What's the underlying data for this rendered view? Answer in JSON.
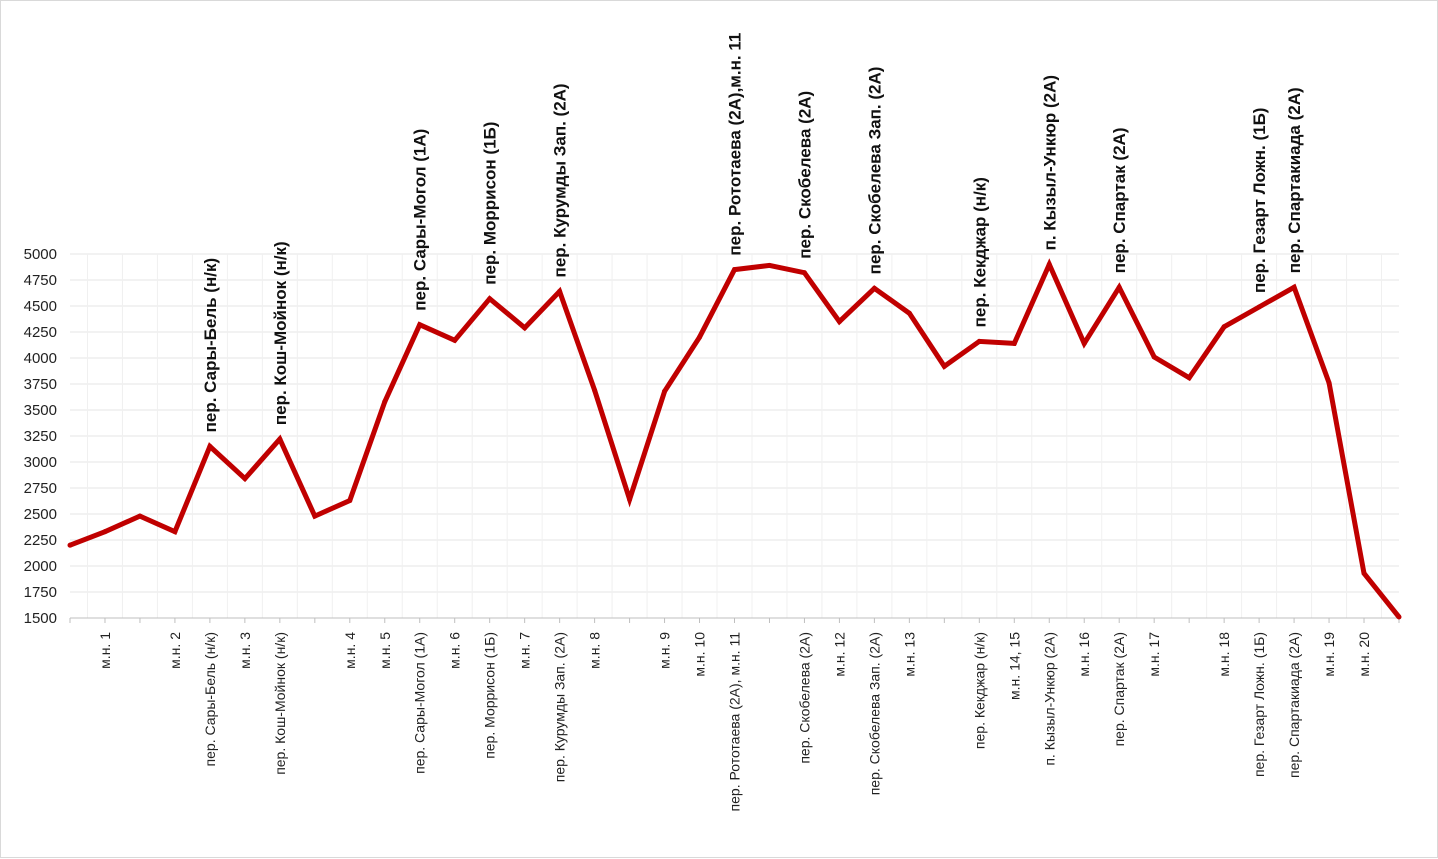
{
  "chart_data": {
    "type": "line",
    "title": "",
    "xlabel": "",
    "ylabel": "",
    "ylim": [
      1500,
      5000
    ],
    "yticks": [
      1500,
      1750,
      2000,
      2250,
      2500,
      2750,
      3000,
      3250,
      3500,
      3750,
      4000,
      4250,
      4500,
      4750,
      5000
    ],
    "grid": true,
    "legend": "none",
    "series": [
      {
        "color": "#c00000",
        "points": [
          {
            "label": "",
            "value": 2200
          },
          {
            "label": "м.н. 1",
            "value": 2330
          },
          {
            "label": "",
            "value": 2480
          },
          {
            "label": "м.н. 2",
            "value": 2330
          },
          {
            "label": "пер. Сары-Бель (н/к)",
            "value": 3150
          },
          {
            "label": "м.н. 3",
            "value": 2840
          },
          {
            "label": "пер. Кош-Мойнок (н/к)",
            "value": 3220
          },
          {
            "label": "",
            "value": 2480
          },
          {
            "label": "м.н. 4",
            "value": 2630
          },
          {
            "label": "м.н. 5",
            "value": 3580
          },
          {
            "label": "пер. Сары-Могол (1А)",
            "value": 4320
          },
          {
            "label": "м.н. 6",
            "value": 4170
          },
          {
            "label": "пер. Моррисон (1Б)",
            "value": 4570
          },
          {
            "label": "м.н. 7",
            "value": 4290
          },
          {
            "label": "пер. Курумды Зап. (2А)",
            "value": 4640
          },
          {
            "label": "м.н. 8",
            "value": 3690
          },
          {
            "label": "",
            "value": 2640
          },
          {
            "label": "м.н. 9",
            "value": 3680
          },
          {
            "label": "м.н. 10",
            "value": 4200
          },
          {
            "label": "пер. Рототаева (2А), м.н. 11",
            "value": 4850
          },
          {
            "label": "",
            "value": 4890
          },
          {
            "label": "пер. Скобелева (2А)",
            "value": 4820
          },
          {
            "label": "м.н. 12",
            "value": 4350
          },
          {
            "label": "пер. Скобелева Зап. (2А)",
            "value": 4670
          },
          {
            "label": "м.н. 13",
            "value": 4430
          },
          {
            "label": "",
            "value": 3920
          },
          {
            "label": "пер. Кекджар (н/к)",
            "value": 4160
          },
          {
            "label": "м.н. 14, 15",
            "value": 4140
          },
          {
            "label": "п. Кызыл-Ункюр (2А)",
            "value": 4900
          },
          {
            "label": "м.н. 16",
            "value": 4140
          },
          {
            "label": "пер. Спартак (2А)",
            "value": 4680
          },
          {
            "label": "м.н. 17",
            "value": 4010
          },
          {
            "label": "",
            "value": 3810
          },
          {
            "label": "м.н. 18",
            "value": 4300
          },
          {
            "label": "пер. Гезарт Ложн. (1Б)",
            "value": 4490
          },
          {
            "label": "пер. Спартакиада (2А)",
            "value": 4680
          },
          {
            "label": "м.н. 19",
            "value": 3760
          },
          {
            "label": "м.н. 20",
            "value": 1930
          },
          {
            "label": "",
            "value": 1510
          }
        ]
      }
    ],
    "annotations": [
      {
        "index": 4,
        "text": "пер. Сары-Бель (н/к)"
      },
      {
        "index": 6,
        "text": "пер. Кош-Мойнок (н/к)"
      },
      {
        "index": 10,
        "text": "пер. Сары-Могол (1А)"
      },
      {
        "index": 12,
        "text": "пер. Моррисон (1Б)"
      },
      {
        "index": 14,
        "text": "пер. Курумды Зап. (2А)"
      },
      {
        "index": 19,
        "text": "пер. Рототаева (2А),м.н. 11"
      },
      {
        "index": 21,
        "text": "пер. Скобелева (2А)"
      },
      {
        "index": 23,
        "text": "пер. Скобелева Зап. (2А)"
      },
      {
        "index": 26,
        "text": "пер. Кекджар (н/к)"
      },
      {
        "index": 28,
        "text": "п. Кызыл-Ункюр (2А)"
      },
      {
        "index": 30,
        "text": "пер. Спартак (2А)"
      },
      {
        "index": 34,
        "text": "пер. Гезарт Ложн. (1Б)"
      },
      {
        "index": 35,
        "text": "пер. Спартакиада (2А)"
      }
    ]
  }
}
